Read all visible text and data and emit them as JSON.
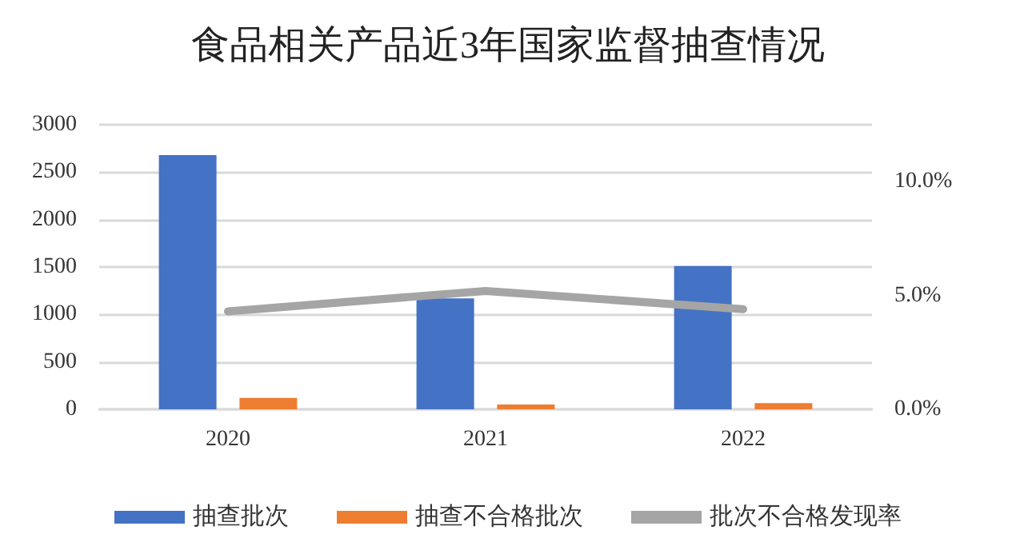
{
  "chart_data": {
    "type": "bar",
    "title": "食品相关产品近3年国家监督抽查情况",
    "categories": [
      "2020",
      "2021",
      "2022"
    ],
    "series": [
      {
        "name": "抽查批次",
        "color": "#4472c4",
        "values": [
          2680,
          1170,
          1510
        ]
      },
      {
        "name": "抽查不合格批次",
        "color": "#ed7d31",
        "values": [
          120,
          50,
          65
        ]
      },
      {
        "name": "批次不合格发现率",
        "color": "#a5a5a5",
        "type": "line",
        "axis": "y2",
        "values": [
          4.3,
          5.2,
          4.4
        ]
      }
    ],
    "ylim": [
      0,
      3000
    ],
    "yticks": [
      0,
      500,
      1000,
      1500,
      2000,
      2500,
      3000
    ],
    "y2lim": [
      0,
      12.5
    ],
    "y2ticks": [
      {
        "value": 0,
        "label": "0.0%"
      },
      {
        "value": 5,
        "label": "5.0%"
      },
      {
        "value": 10,
        "label": "10.0%"
      }
    ],
    "grid": "y",
    "legend": "bottom",
    "marker": "none"
  }
}
